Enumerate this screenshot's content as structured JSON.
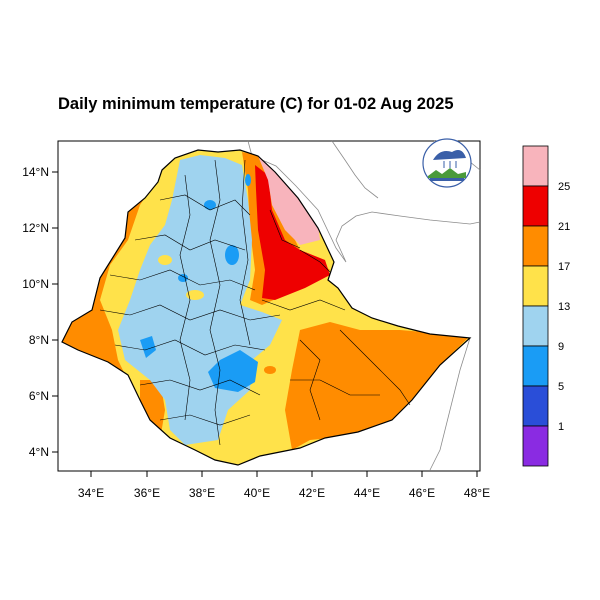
{
  "map": {
    "title": "Daily minimum temperature (C) for 01-02 Aug 2025",
    "lon_ticks": [
      "34°E",
      "36°E",
      "38°E",
      "40°E",
      "42°E",
      "44°E",
      "46°E",
      "48°E"
    ],
    "lat_ticks": [
      "14°N",
      "12°N",
      "10°N",
      "8°N",
      "6°N",
      "4°N"
    ],
    "colorbar": {
      "labels": [
        "25",
        "21",
        "17",
        "13",
        "9",
        "5",
        "1"
      ],
      "colors": [
        "#f8b4bc",
        "#ee0000",
        "#ff8c00",
        "#ffe24a",
        "#9fd3ef",
        "#1a9cf5",
        "#2a4ed8",
        "#8a2be2"
      ]
    },
    "logo": {
      "caption": "Ethiopian Meteorology Institute",
      "icon": "meteorology-institute-logo"
    }
  }
}
